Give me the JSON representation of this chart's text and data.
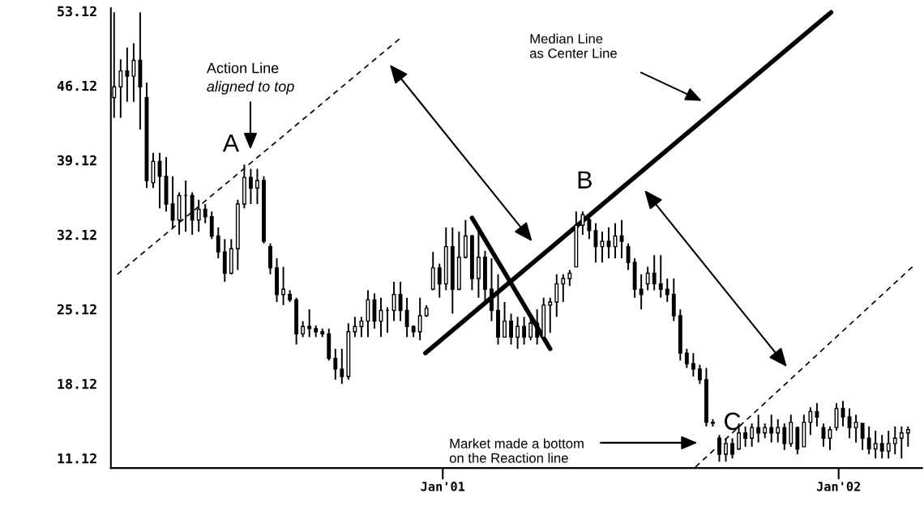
{
  "chart_data": {
    "type": "candlestick",
    "color": "#000000",
    "x": [
      "2000-03-04",
      "2000-03-10",
      "2000-03-16",
      "2000-03-22",
      "2000-03-28",
      "2000-04-03",
      "2000-04-09",
      "2000-04-15",
      "2000-04-21",
      "2000-04-27",
      "2000-05-03",
      "2000-05-09",
      "2000-05-15",
      "2000-05-21",
      "2000-05-27",
      "2000-06-02",
      "2000-06-08",
      "2000-06-14",
      "2000-06-20",
      "2000-06-26",
      "2000-07-02",
      "2000-07-08",
      "2000-07-14",
      "2000-07-20",
      "2000-07-26",
      "2000-08-01",
      "2000-08-07",
      "2000-08-13",
      "2000-08-19",
      "2000-08-25",
      "2000-08-31",
      "2000-09-06",
      "2000-09-12",
      "2000-09-18",
      "2000-09-24",
      "2000-09-30",
      "2000-10-06",
      "2000-10-12",
      "2000-10-18",
      "2000-10-24",
      "2000-10-30",
      "2000-11-05",
      "2000-11-11",
      "2000-11-17",
      "2000-11-23",
      "2000-11-29",
      "2000-12-05",
      "2000-12-11",
      "2000-12-17",
      "2000-12-23",
      "2000-12-29",
      "2001-01-04",
      "2001-01-10",
      "2001-01-16",
      "2001-01-22",
      "2001-01-28",
      "2001-02-03",
      "2001-02-09",
      "2001-02-15",
      "2001-02-21",
      "2001-02-27",
      "2001-03-05",
      "2001-03-11",
      "2001-03-17",
      "2001-03-23",
      "2001-03-29",
      "2001-04-04",
      "2001-04-10",
      "2001-04-16",
      "2001-04-22",
      "2001-04-28",
      "2001-05-04",
      "2001-05-10",
      "2001-05-16",
      "2001-05-22",
      "2001-05-28",
      "2001-06-03",
      "2001-06-09",
      "2001-06-15",
      "2001-06-21",
      "2001-06-27",
      "2001-07-03",
      "2001-07-09",
      "2001-07-15",
      "2001-07-21",
      "2001-07-27",
      "2001-08-02",
      "2001-08-08",
      "2001-08-14",
      "2001-08-20",
      "2001-08-26",
      "2001-09-01",
      "2001-09-07",
      "2001-09-13",
      "2001-09-19",
      "2001-09-25",
      "2001-10-01",
      "2001-10-07",
      "2001-10-13",
      "2001-10-19",
      "2001-10-25",
      "2001-10-31",
      "2001-11-06",
      "2001-11-12",
      "2001-11-18",
      "2001-11-24",
      "2001-11-30",
      "2001-12-06",
      "2001-12-12",
      "2001-12-18",
      "2001-12-24",
      "2001-12-30",
      "2002-01-05",
      "2002-01-11",
      "2002-01-17",
      "2002-01-23",
      "2002-01-29",
      "2002-02-04",
      "2002-02-10",
      "2002-02-16",
      "2002-02-22",
      "2002-02-28",
      "2002-03-06"
    ],
    "ohlc": [
      [
        45,
        53.0,
        43.1,
        46
      ],
      [
        46,
        48.6,
        43.1,
        47.5
      ],
      [
        47.5,
        49.7,
        44.6,
        47
      ],
      [
        47,
        50.1,
        44.6,
        48.5
      ],
      [
        48.5,
        53.0,
        42.0,
        46
      ],
      [
        45,
        46.4,
        36.5,
        37.2
      ],
      [
        37,
        39.8,
        36.5,
        39
      ],
      [
        39,
        39.8,
        34.6,
        37.6
      ],
      [
        37.6,
        39.4,
        34.3,
        35
      ],
      [
        35,
        37.6,
        32.8,
        33.5
      ],
      [
        33.5,
        36.1,
        32.1,
        35.8
      ],
      [
        35.8,
        37.2,
        32.4,
        35.8
      ],
      [
        35.8,
        36.1,
        32.1,
        33.5
      ],
      [
        33.5,
        35.4,
        32.4,
        34.5
      ],
      [
        34.5,
        35.0,
        33.2,
        33.8
      ],
      [
        33.8,
        34.3,
        31.7,
        32
      ],
      [
        32,
        32.8,
        29.9,
        30.5
      ],
      [
        30.5,
        31.7,
        27.7,
        28.5
      ],
      [
        28.5,
        31.7,
        28.4,
        30.8
      ],
      [
        30.8,
        35.4,
        28.8,
        35
      ],
      [
        35,
        38.7,
        34.6,
        37.5
      ],
      [
        37.5,
        38.3,
        35.0,
        36.5
      ],
      [
        36.5,
        38.3,
        35.0,
        37.2
      ],
      [
        37.2,
        37.6,
        31.3,
        31.5
      ],
      [
        31,
        31.3,
        28.4,
        29
      ],
      [
        29,
        29.9,
        25.8,
        26.5
      ],
      [
        26.5,
        29.1,
        25.5,
        27
      ],
      [
        26.5,
        26.9,
        25.8,
        26
      ],
      [
        26,
        26.2,
        21.8,
        22.8
      ],
      [
        22.8,
        24.0,
        22.5,
        23.5
      ],
      [
        23.5,
        25.1,
        22.5,
        23.3
      ],
      [
        23.3,
        23.6,
        22.5,
        23
      ],
      [
        23,
        23.3,
        22.5,
        22.8
      ],
      [
        22.8,
        23.3,
        20.3,
        20.5
      ],
      [
        20.5,
        21.4,
        18.5,
        19.5
      ],
      [
        19.5,
        21.4,
        18.1,
        18.8
      ],
      [
        18.8,
        23.8,
        18.5,
        23
      ],
      [
        23,
        24.4,
        22.5,
        23.5
      ],
      [
        23.5,
        24.4,
        22.5,
        24
      ],
      [
        24,
        26.9,
        22.5,
        26
      ],
      [
        26,
        26.6,
        23.3,
        24
      ],
      [
        24,
        26.2,
        22.5,
        25
      ],
      [
        25,
        25.3,
        22.9,
        25
      ],
      [
        25,
        27.7,
        24.0,
        26.5
      ],
      [
        26.5,
        27.7,
        24.0,
        25
      ],
      [
        25,
        26.2,
        22.5,
        23.5
      ],
      [
        23.5,
        23.6,
        22.5,
        23
      ],
      [
        23,
        26.2,
        22.2,
        24.5
      ],
      [
        24.5,
        25.5,
        24.4,
        25.2
      ],
      [
        27,
        30.5,
        26.9,
        29
      ],
      [
        29,
        29.4,
        26.2,
        27.5
      ],
      [
        27.5,
        32.8,
        26.9,
        31
      ],
      [
        31,
        32.8,
        24.7,
        27
      ],
      [
        27,
        32.4,
        26.9,
        30
      ],
      [
        30,
        33.5,
        29.9,
        32
      ],
      [
        32,
        32.1,
        26.9,
        28
      ],
      [
        28,
        32.8,
        26.2,
        30
      ],
      [
        30,
        30.6,
        25.8,
        27
      ],
      [
        27,
        29.9,
        24.0,
        25
      ],
      [
        25,
        28.4,
        21.8,
        22.5
      ],
      [
        22.5,
        25.8,
        22.5,
        24
      ],
      [
        24,
        24.7,
        21.8,
        22.5
      ],
      [
        22.5,
        24.4,
        21.4,
        23.5
      ],
      [
        23.5,
        24.4,
        21.8,
        22.5
      ],
      [
        22.5,
        24.4,
        22.2,
        23.8
      ],
      [
        23.8,
        25.1,
        21.8,
        22.5
      ],
      [
        22.5,
        26.2,
        22.5,
        25.5
      ],
      [
        25.5,
        26.2,
        22.9,
        25.8
      ],
      [
        25.8,
        28.4,
        24.4,
        27.5
      ],
      [
        27.5,
        28.4,
        25.8,
        28
      ],
      [
        28,
        28.8,
        27.3,
        28.5
      ],
      [
        29.1,
        34.3,
        29.1,
        33
      ],
      [
        33,
        34.3,
        32.1,
        34
      ],
      [
        33.5,
        33.9,
        31.7,
        32.5
      ],
      [
        32.5,
        33.2,
        29.5,
        31
      ],
      [
        31,
        32.4,
        29.5,
        31.5
      ],
      [
        31.5,
        32.8,
        29.9,
        31
      ],
      [
        31,
        33.2,
        29.9,
        32
      ],
      [
        32,
        33.5,
        29.9,
        31.5
      ],
      [
        31,
        31.3,
        28.8,
        29.5
      ],
      [
        29.5,
        29.9,
        26.2,
        27
      ],
      [
        27,
        28.4,
        25.1,
        26.5
      ],
      [
        27.5,
        29.1,
        26.9,
        28.5
      ],
      [
        28.5,
        30.2,
        26.9,
        27.5
      ],
      [
        27.5,
        30.2,
        26.2,
        27
      ],
      [
        27,
        28.0,
        25.8,
        26.5
      ],
      [
        26.5,
        28.0,
        24.0,
        24.5
      ],
      [
        24.5,
        25.1,
        20.3,
        21
      ],
      [
        21,
        21.4,
        19.6,
        20
      ],
      [
        20,
        21.0,
        18.8,
        19.5
      ],
      [
        19.5,
        19.9,
        18.1,
        18.5
      ],
      [
        18.5,
        19.6,
        14.1,
        14.5
      ],
      [
        14.5,
        14.8,
        14.1,
        14.4
      ],
      [
        13,
        13.3,
        10.8,
        11.5
      ],
      [
        11.5,
        13.0,
        10.8,
        12.5
      ],
      [
        12.5,
        13.0,
        11.1,
        11.5
      ],
      [
        12,
        14.4,
        11.9,
        13.5
      ],
      [
        13.5,
        14.1,
        12.2,
        13
      ],
      [
        13,
        14.4,
        12.2,
        14
      ],
      [
        14,
        15.2,
        12.6,
        13.5
      ],
      [
        13.5,
        14.4,
        13.0,
        14
      ],
      [
        14,
        15.2,
        12.6,
        13.5
      ],
      [
        13.5,
        14.8,
        12.6,
        14
      ],
      [
        14,
        14.4,
        11.9,
        12.5
      ],
      [
        12.5,
        15.2,
        12.2,
        14.5
      ],
      [
        14,
        14.1,
        11.5,
        12
      ],
      [
        12.2,
        15.2,
        12.2,
        14.5
      ],
      [
        14.5,
        15.9,
        13.3,
        15.5
      ],
      [
        15.5,
        16.3,
        14.1,
        15
      ],
      [
        14,
        14.4,
        12.2,
        13
      ],
      [
        13,
        14.1,
        11.9,
        13.8
      ],
      [
        14,
        16.3,
        13.7,
        15.8
      ],
      [
        15.8,
        16.5,
        14.1,
        15
      ],
      [
        15,
        15.8,
        13.0,
        14
      ],
      [
        14,
        15.2,
        12.6,
        14.5
      ],
      [
        14.4,
        14.4,
        11.9,
        13
      ],
      [
        13,
        14.1,
        11.5,
        12
      ],
      [
        12,
        13.7,
        11.1,
        12.5
      ],
      [
        12.5,
        13.3,
        11.1,
        11.8
      ],
      [
        11.8,
        13.7,
        11.1,
        12.5
      ],
      [
        12.5,
        14.1,
        11.5,
        13
      ],
      [
        13,
        14.1,
        11.1,
        13.5
      ],
      [
        13.5,
        14.1,
        12.2,
        13.8
      ]
    ],
    "series": [
      {
        "type": "line",
        "color": "#000000",
        "line_style": "solid",
        "x": [
          "2000-12-16",
          "2001-12-25"
        ],
        "values": [
          21.0,
          53.0
        ]
      },
      {
        "type": "line",
        "color": "#000000",
        "line_style": "solid",
        "x": [
          "2001-01-28",
          "2001-04-10"
        ],
        "values": [
          33.7,
          21.4
        ]
      },
      {
        "type": "line",
        "color": "#000000",
        "line_style": "dashed",
        "x": [
          "2000-03-07",
          "2000-11-22"
        ],
        "values": [
          28.4,
          50.5
        ]
      },
      {
        "type": "line",
        "color": "#000000",
        "line_style": "dashed",
        "x": [
          "2001-08-22",
          "2002-03-10"
        ],
        "values": [
          10.3,
          29.1
        ]
      }
    ],
    "annotations": [
      "A",
      "B",
      "C",
      "Action Line",
      "aligned to top",
      "Median Line\nas Center Line",
      "Market made a bottom\non the Reaction line"
    ],
    "xlim": [
      "2000-03-01",
      "2002-03-19"
    ],
    "xticks": [
      {
        "value": "2001-01-01",
        "label": "Jan'01"
      },
      {
        "value": "2002-01-01",
        "label": "Jan'02"
      }
    ],
    "ylim": [
      10.2,
      53.4
    ],
    "yticks": [
      {
        "value": 11.12,
        "label": "11.12"
      },
      {
        "value": 18.12,
        "label": "18.12"
      },
      {
        "value": 25.12,
        "label": "25.12"
      },
      {
        "value": 32.12,
        "label": "32.12"
      },
      {
        "value": 39.12,
        "label": "39.12"
      },
      {
        "value": 46.12,
        "label": "46.12"
      },
      {
        "value": 53.12,
        "label": "53.12"
      }
    ]
  }
}
